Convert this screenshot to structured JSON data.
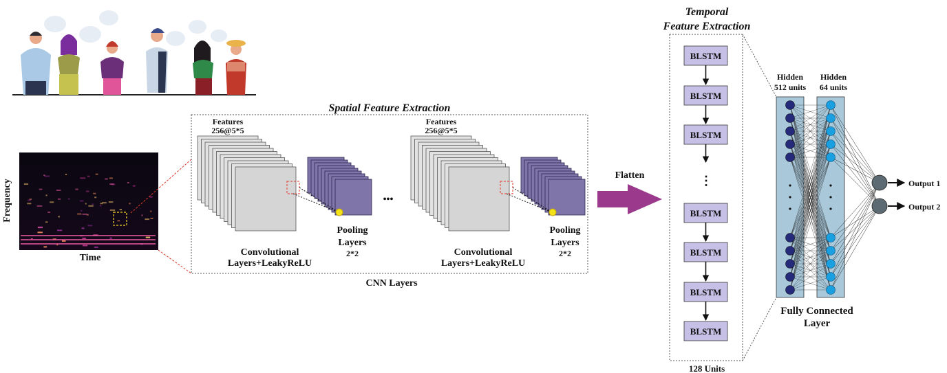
{
  "spectrogram": {
    "y_label": "Frequency",
    "x_label": "Time"
  },
  "spatial": {
    "title": "Spatial Feature Extraction",
    "cnn_label": "CNN Layers",
    "blocks": [
      {
        "features_line1": "Features",
        "features_line2": "256@5*5",
        "conv_line1": "Convolutional",
        "conv_line2": "Layers+LeakyReLU",
        "pool_line1": "Pooling",
        "pool_line2": "Layers",
        "pool_line3": "2*2"
      },
      {
        "features_line1": "Features",
        "features_line2": "256@5*5",
        "conv_line1": "Convolutional",
        "conv_line2": "Layers+LeakyReLU",
        "pool_line1": "Pooling",
        "pool_line2": "Layers",
        "pool_line3": "2*2"
      }
    ],
    "ellipsis": "•••"
  },
  "flatten": {
    "label": "Flatten"
  },
  "temporal": {
    "title_line1": "Temporal",
    "title_line2": "Feature Extraction",
    "units_label": "128 Units",
    "cells": [
      "BLSTM",
      "BLSTM",
      "BLSTM",
      "BLSTM",
      "BLSTM",
      "BLSTM",
      "BLSTM"
    ],
    "ellipsis": "⋮"
  },
  "dense": {
    "hidden1_line1": "Hidden",
    "hidden1_line2": "512 units",
    "hidden2_line1": "Hidden",
    "hidden2_line2": "64 units",
    "fc_line1": "Fully Connected",
    "fc_line2": "Layer",
    "outputs": [
      "Output 1",
      "Output 2"
    ]
  },
  "colors": {
    "accent_purple": "#9b3a8c",
    "pool_purple": "#8075a8",
    "blstm_fill": "#c7c0e6",
    "hidden_bg": "#a9c9db",
    "node_dark": "#252a7a",
    "node_light": "#1aa0e0",
    "output_node": "#5c6b73",
    "dashed_red": "#e23a2a"
  }
}
